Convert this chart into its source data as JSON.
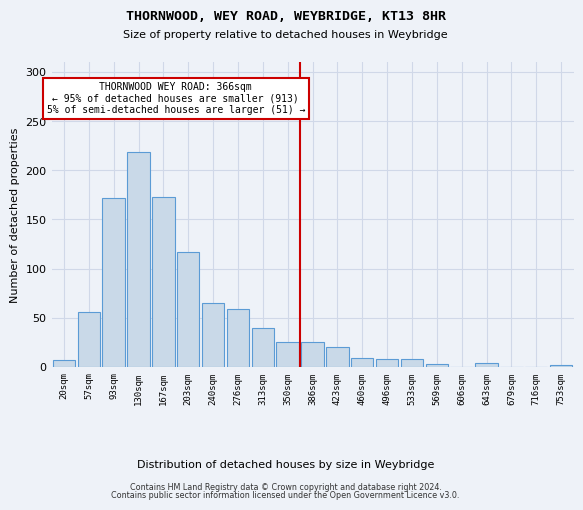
{
  "title": "THORNWOOD, WEY ROAD, WEYBRIDGE, KT13 8HR",
  "subtitle": "Size of property relative to detached houses in Weybridge",
  "xlabel": "Distribution of detached houses by size in Weybridge",
  "ylabel": "Number of detached properties",
  "bar_labels": [
    "20sqm",
    "57sqm",
    "93sqm",
    "130sqm",
    "167sqm",
    "203sqm",
    "240sqm",
    "276sqm",
    "313sqm",
    "350sqm",
    "386sqm",
    "423sqm",
    "460sqm",
    "496sqm",
    "533sqm",
    "569sqm",
    "606sqm",
    "643sqm",
    "679sqm",
    "716sqm",
    "753sqm"
  ],
  "bar_heights": [
    7,
    56,
    172,
    219,
    173,
    117,
    65,
    59,
    40,
    25,
    25,
    20,
    9,
    8,
    8,
    3,
    0,
    4,
    0,
    0,
    2
  ],
  "bar_color": "#c9d9e8",
  "bar_edge_color": "#5b9bd5",
  "vline_x": 9.5,
  "vline_color": "#cc0000",
  "annotation_title": "THORNWOOD WEY ROAD: 366sqm",
  "annotation_line1": "← 95% of detached houses are smaller (913)",
  "annotation_line2": "5% of semi-detached houses are larger (51) →",
  "annotation_box_color": "#ffffff",
  "annotation_box_edge": "#cc0000",
  "ylim": [
    0,
    310
  ],
  "yticks": [
    0,
    50,
    100,
    150,
    200,
    250,
    300
  ],
  "grid_color": "#d0d8e8",
  "footer_line1": "Contains HM Land Registry data © Crown copyright and database right 2024.",
  "footer_line2": "Contains public sector information licensed under the Open Government Licence v3.0.",
  "bg_color": "#eef2f8"
}
